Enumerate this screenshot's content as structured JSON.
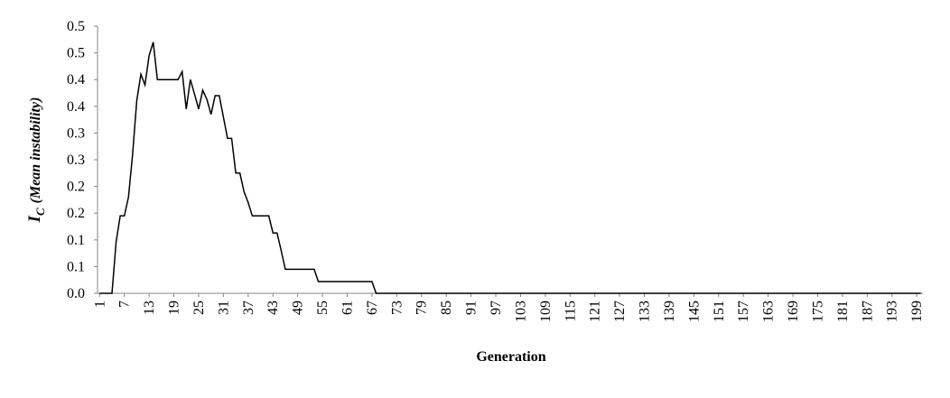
{
  "chart_data": {
    "type": "line",
    "ylabel_main": "I",
    "ylabel_sub": "C",
    "ylabel_rest": "(Mean instability)",
    "xlabel": "Generation",
    "color": "#000000",
    "x": [
      1,
      2,
      3,
      4,
      5,
      6,
      7,
      8,
      9,
      10,
      11,
      12,
      13,
      14,
      15,
      16,
      17,
      18,
      19,
      20,
      21,
      22,
      23,
      24,
      25,
      26,
      27,
      28,
      29,
      30,
      31,
      32,
      33,
      34,
      35,
      36,
      37,
      38,
      39,
      40,
      41,
      42,
      43,
      44,
      45,
      46,
      47,
      48,
      49,
      50,
      51,
      52,
      53,
      54,
      55,
      56,
      57,
      58,
      59,
      60,
      61,
      62,
      63,
      64,
      65,
      66,
      67,
      68,
      69,
      70,
      71,
      72,
      73,
      74,
      75,
      76,
      77,
      78,
      79,
      80,
      81,
      82,
      83,
      84,
      85,
      86,
      87,
      88,
      89,
      90,
      91,
      92,
      93,
      94,
      95,
      96,
      97,
      98,
      99,
      100,
      101,
      102,
      103,
      104,
      105,
      106,
      107,
      108,
      109,
      110,
      111,
      112,
      113,
      114,
      115,
      116,
      117,
      118,
      119,
      120,
      121,
      122,
      123,
      124,
      125,
      126,
      127,
      128,
      129,
      130,
      131,
      132,
      133,
      134,
      135,
      136,
      137,
      138,
      139,
      140,
      141,
      142,
      143,
      144,
      145,
      146,
      147,
      148,
      149,
      150,
      151,
      152,
      153,
      154,
      155,
      156,
      157,
      158,
      159,
      160,
      161,
      162,
      163,
      164,
      165,
      166,
      167,
      168,
      169,
      170,
      171,
      172,
      173,
      174,
      175,
      176,
      177,
      178,
      179,
      180,
      181,
      182,
      183,
      184,
      185,
      186,
      187,
      188,
      189,
      190,
      191,
      192,
      193,
      194,
      195,
      196,
      197,
      198,
      199,
      200
    ],
    "values": [
      0,
      0,
      0,
      0,
      0.096,
      0.145,
      0.145,
      0.18,
      0.26,
      0.36,
      0.41,
      0.39,
      0.445,
      0.47,
      0.4,
      0.4,
      0.4,
      0.4,
      0.4,
      0.4,
      0.415,
      0.345,
      0.4,
      0.373,
      0.345,
      0.38,
      0.363,
      0.335,
      0.37,
      0.37,
      0.33,
      0.29,
      0.29,
      0.225,
      0.225,
      0.19,
      0.17,
      0.145,
      0.145,
      0.145,
      0.145,
      0.145,
      0.113,
      0.113,
      0.08,
      0.045,
      0.045,
      0.045,
      0.045,
      0.045,
      0.045,
      0.045,
      0.045,
      0.022,
      0.022,
      0.022,
      0.022,
      0.022,
      0.022,
      0.022,
      0.022,
      0.022,
      0.022,
      0.022,
      0.022,
      0.022,
      0.022,
      0,
      0,
      0,
      0,
      0,
      0,
      0,
      0,
      0,
      0,
      0,
      0,
      0,
      0,
      0,
      0,
      0,
      0,
      0,
      0,
      0,
      0,
      0,
      0,
      0,
      0,
      0,
      0,
      0,
      0,
      0,
      0,
      0,
      0,
      0,
      0,
      0,
      0,
      0,
      0,
      0,
      0,
      0,
      0,
      0,
      0,
      0,
      0,
      0,
      0,
      0,
      0,
      0,
      0,
      0,
      0,
      0,
      0,
      0,
      0,
      0,
      0,
      0,
      0,
      0,
      0,
      0,
      0,
      0,
      0,
      0,
      0,
      0,
      0,
      0,
      0,
      0,
      0,
      0,
      0,
      0,
      0,
      0,
      0,
      0,
      0,
      0,
      0,
      0,
      0,
      0,
      0,
      0,
      0,
      0,
      0,
      0,
      0,
      0,
      0,
      0,
      0,
      0,
      0,
      0,
      0,
      0,
      0,
      0,
      0,
      0,
      0,
      0,
      0,
      0,
      0,
      0,
      0,
      0,
      0,
      0,
      0,
      0,
      0,
      0,
      0,
      0,
      0,
      0,
      0,
      0,
      0,
      0
    ],
    "xlim": [
      0.5,
      200.5
    ],
    "xticks": [
      1,
      7,
      13,
      19,
      25,
      31,
      37,
      43,
      49,
      55,
      61,
      67,
      73,
      79,
      85,
      91,
      97,
      103,
      109,
      115,
      121,
      127,
      133,
      139,
      145,
      151,
      157,
      163,
      169,
      175,
      181,
      187,
      193,
      199
    ],
    "ylim": [
      0,
      0.5
    ],
    "yticks": [
      {
        "value": 0,
        "label": "0.0"
      },
      {
        "value": 0.05,
        "label": "0.1"
      },
      {
        "value": 0.1,
        "label": "0.1"
      },
      {
        "value": 0.15,
        "label": "0.2"
      },
      {
        "value": 0.2,
        "label": "0.2"
      },
      {
        "value": 0.25,
        "label": "0.3"
      },
      {
        "value": 0.3,
        "label": "0.3"
      },
      {
        "value": 0.35,
        "label": "0.4"
      },
      {
        "value": 0.4,
        "label": "0.4"
      },
      {
        "value": 0.45,
        "label": "0.5"
      },
      {
        "value": 0.5,
        "label": "0.5"
      }
    ]
  }
}
